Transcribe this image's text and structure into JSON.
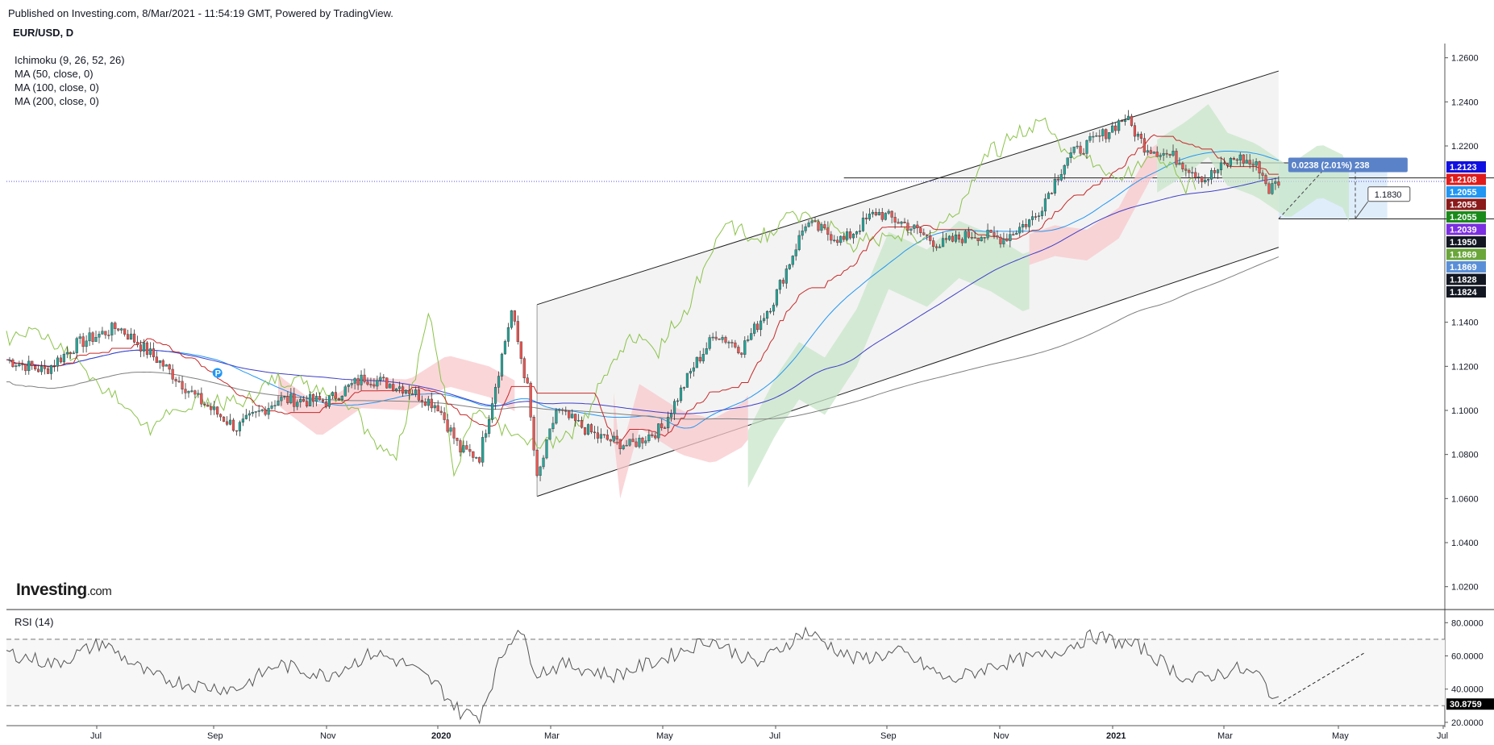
{
  "header": {
    "published": "Published on Investing.com, 8/Mar/2021 - 11:54:19 GMT, Powered by TradingView.",
    "symbol": "EUR/USD, D"
  },
  "indicators": [
    "Ichimoku (9, 26, 52, 26)",
    "MA (50, close, 0)",
    "MA (100, close, 0)",
    "MA (200, close, 0)"
  ],
  "logo": {
    "brand": "Investing",
    "suffix": ".com"
  },
  "rsi_label": "RSI (14)",
  "colors": {
    "candle_up": "#26a69a",
    "candle_down": "#ef5350",
    "channel": "#1f1f1f",
    "ma50": "#2196f3",
    "ma100": "#3f3fc8",
    "ma200": "#7f7f7f",
    "ichimoku_lagging": "#8bc34a",
    "ichimoku_kijun": "#c62828",
    "cloud_bull": "#c8e6c9",
    "cloud_bear": "#f8c8cc"
  },
  "chart_data": [
    {
      "type": "candlestick",
      "title": "EUR/USD, D",
      "x_ticks": [
        "Jul",
        "Sep",
        "Nov",
        "2020",
        "Mar",
        "May",
        "Jul",
        "Sep",
        "Nov",
        "2021",
        "Mar",
        "May",
        "Jul"
      ],
      "y_ticks": [
        "1.2600",
        "1.2400",
        "1.2200",
        "1.1400",
        "1.1200",
        "1.1000",
        "1.0800",
        "1.0600",
        "1.0400",
        "1.0200"
      ],
      "ylim": [
        1.01,
        1.265
      ],
      "close_path": [
        [
          0,
          1.123
        ],
        [
          12,
          1.118
        ],
        [
          22,
          1.13
        ],
        [
          35,
          1.138
        ],
        [
          48,
          1.122
        ],
        [
          60,
          1.105
        ],
        [
          72,
          1.092
        ],
        [
          85,
          1.105
        ],
        [
          100,
          1.104
        ],
        [
          112,
          1.115
        ],
        [
          125,
          1.11
        ],
        [
          135,
          1.102
        ],
        [
          142,
          1.082
        ],
        [
          148,
          1.079
        ],
        [
          152,
          1.105
        ],
        [
          158,
          1.145
        ],
        [
          163,
          1.11
        ],
        [
          166,
          1.068
        ],
        [
          172,
          1.1
        ],
        [
          185,
          1.088
        ],
        [
          195,
          1.084
        ],
        [
          205,
          1.092
        ],
        [
          215,
          1.12
        ],
        [
          222,
          1.135
        ],
        [
          230,
          1.128
        ],
        [
          240,
          1.15
        ],
        [
          250,
          1.185
        ],
        [
          262,
          1.177
        ],
        [
          272,
          1.19
        ],
        [
          282,
          1.184
        ],
        [
          292,
          1.175
        ],
        [
          302,
          1.18
        ],
        [
          312,
          1.178
        ],
        [
          322,
          1.188
        ],
        [
          332,
          1.215
        ],
        [
          343,
          1.225
        ],
        [
          350,
          1.233
        ],
        [
          356,
          1.22
        ],
        [
          365,
          1.215
        ],
        [
          375,
          1.205
        ],
        [
          385,
          1.215
        ],
        [
          392,
          1.21
        ],
        [
          395,
          1.2
        ],
        [
          398,
          1.2039
        ]
      ],
      "last_price": "1.2039",
      "price_tags": [
        {
          "value": "1.2123",
          "color": "#1010e0"
        },
        {
          "value": "1.2108",
          "color": "#e01b1b"
        },
        {
          "value": "1.2055",
          "color": "#2196f3"
        },
        {
          "value": "1.2055",
          "color": "#8b1a1a"
        },
        {
          "value": "1.2055",
          "color": "#1a8a1a"
        },
        {
          "value": "1.2039",
          "color": "#7b2fe0"
        },
        {
          "value": "1.1950",
          "color": "#131722"
        },
        {
          "value": "1.1869",
          "color": "#6aa63a"
        },
        {
          "value": "1.1869",
          "color": "#5a8fd8"
        },
        {
          "value": "1.1828",
          "color": "#131722"
        },
        {
          "value": "1.1824",
          "color": "#131722"
        }
      ],
      "annotations": {
        "measure": "0.0238 (2.01%) 238",
        "target_label": "1.1830"
      }
    },
    {
      "type": "line",
      "title": "RSI (14)",
      "y_ticks": [
        "80.0000",
        "60.0000",
        "40.0000",
        "20.0000"
      ],
      "ylim": [
        18,
        85
      ],
      "bands": [
        70,
        30
      ],
      "last_value": "30.8759",
      "path": [
        [
          0,
          62
        ],
        [
          15,
          55
        ],
        [
          30,
          68
        ],
        [
          45,
          48
        ],
        [
          60,
          42
        ],
        [
          72,
          40
        ],
        [
          85,
          55
        ],
        [
          100,
          48
        ],
        [
          115,
          62
        ],
        [
          125,
          55
        ],
        [
          135,
          42
        ],
        [
          142,
          26
        ],
        [
          148,
          24
        ],
        [
          155,
          60
        ],
        [
          160,
          78
        ],
        [
          166,
          50
        ],
        [
          175,
          55
        ],
        [
          190,
          48
        ],
        [
          205,
          58
        ],
        [
          220,
          70
        ],
        [
          235,
          55
        ],
        [
          250,
          75
        ],
        [
          265,
          58
        ],
        [
          280,
          62
        ],
        [
          295,
          45
        ],
        [
          310,
          55
        ],
        [
          325,
          60
        ],
        [
          340,
          72
        ],
        [
          355,
          65
        ],
        [
          370,
          45
        ],
        [
          385,
          52
        ],
        [
          392,
          48
        ],
        [
          398,
          31
        ]
      ]
    }
  ]
}
